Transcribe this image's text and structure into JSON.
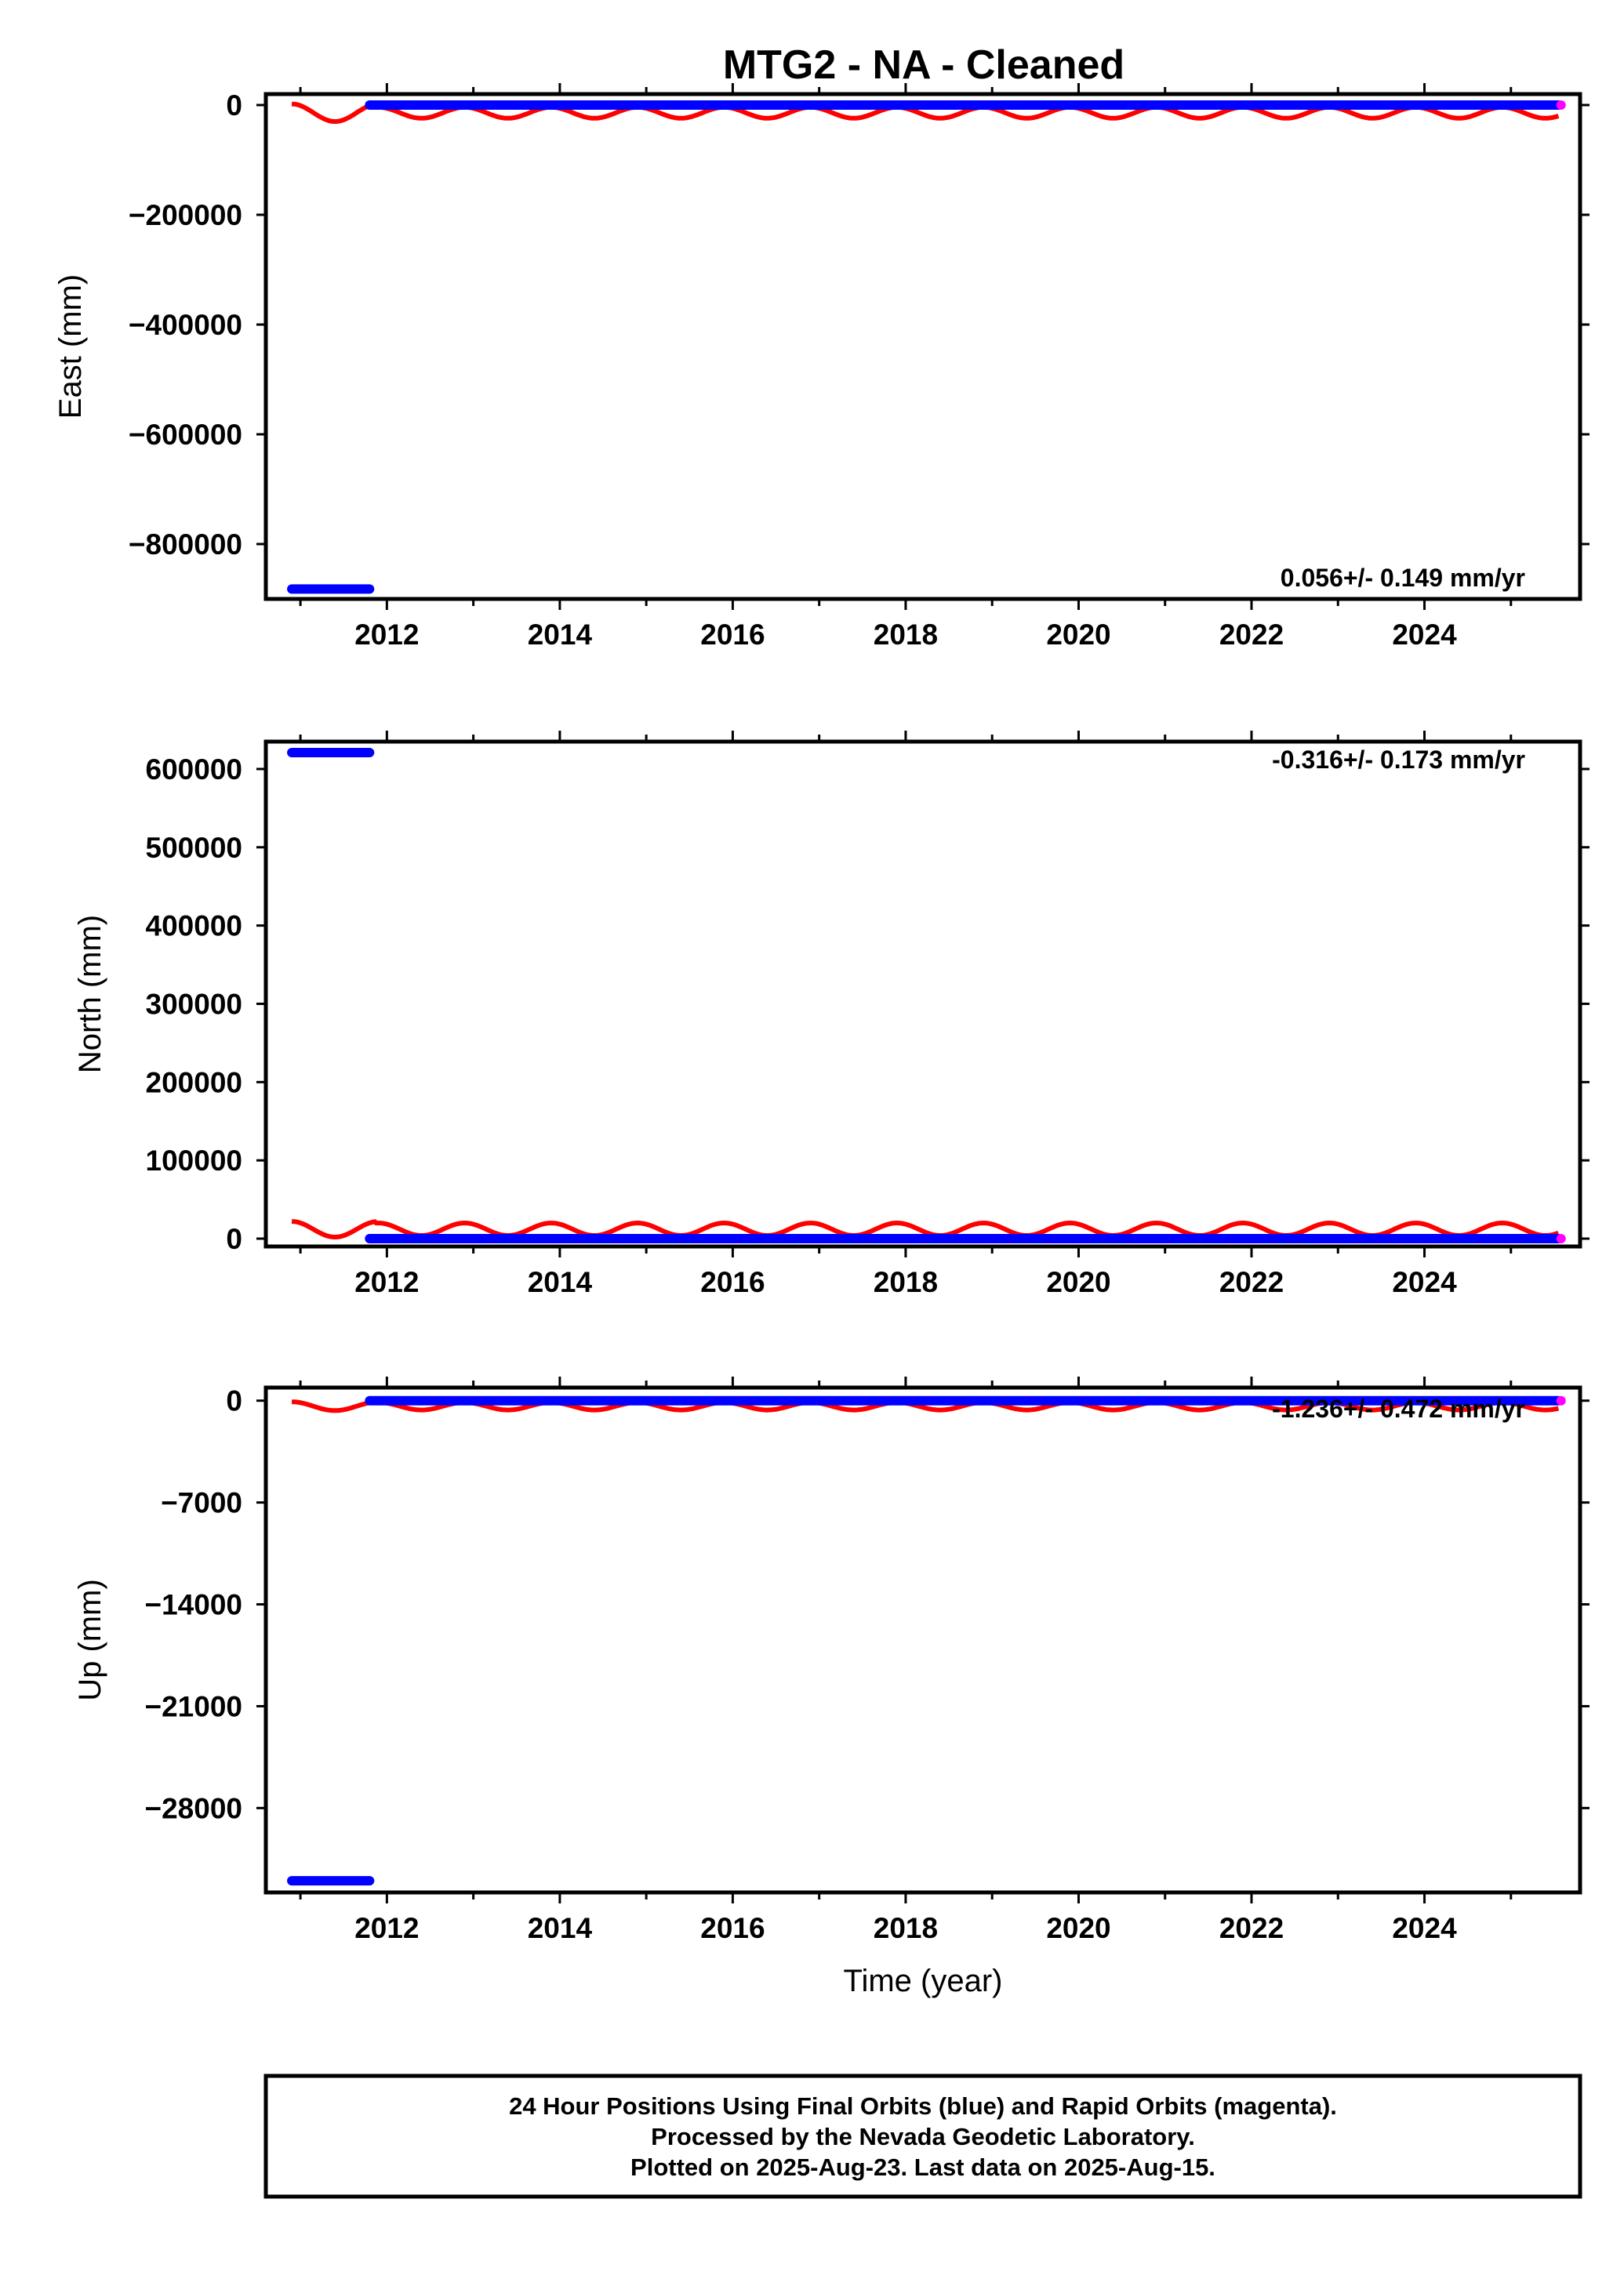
{
  "title": "MTG2  - NA - Cleaned",
  "xlabel": "Time (year)",
  "colors": {
    "final": "#0000ff",
    "rapid": "#ff00ff",
    "model": "#ff0000",
    "frame": "#000000"
  },
  "chart_data": [
    {
      "type": "scatter",
      "name": "east",
      "ylabel": "East (mm)",
      "rate_text": "0.056+/- 0.149 mm/yr",
      "xlim": [
        2010.6,
        2025.8
      ],
      "ylim": [
        -900000,
        20000
      ],
      "yticks": [
        0,
        -200000,
        -400000,
        -600000,
        -800000
      ],
      "ytick_labels": [
        "0",
        "−200000",
        "−400000",
        "−600000",
        "−800000"
      ],
      "xticks": [
        2012,
        2014,
        2016,
        2018,
        2020,
        2022,
        2024
      ],
      "offset_segment": {
        "x": [
          2010.9,
          2011.8
        ],
        "y": -882000
      },
      "main_segment": {
        "x": [
          2011.8,
          2025.55
        ],
        "y": 0
      },
      "rapid_points": [
        {
          "x": 2025.58,
          "y": 0
        }
      ],
      "model": {
        "x": [
          2010.9,
          2025.55
        ],
        "baseline": -14000,
        "amplitude": 10000,
        "start_amplitude": 16000,
        "period_years": 1.0
      }
    },
    {
      "type": "scatter",
      "name": "north",
      "ylabel": "North (mm)",
      "rate_text": "-0.316+/- 0.173 mm/yr",
      "xlim": [
        2010.6,
        2025.8
      ],
      "ylim": [
        -10000,
        635000
      ],
      "yticks": [
        600000,
        500000,
        400000,
        300000,
        200000,
        100000,
        0
      ],
      "ytick_labels": [
        "600000",
        "500000",
        "400000",
        "300000",
        "200000",
        "100000",
        "0"
      ],
      "xticks": [
        2012,
        2014,
        2016,
        2018,
        2020,
        2022,
        2024
      ],
      "offset_segment": {
        "x": [
          2010.9,
          2011.8
        ],
        "y": 621000
      },
      "main_segment": {
        "x": [
          2011.8,
          2025.55
        ],
        "y": 0
      },
      "rapid_points": [
        {
          "x": 2025.58,
          "y": 0
        }
      ],
      "model": {
        "x": [
          2010.9,
          2025.55
        ],
        "baseline": 12000,
        "amplitude": 8000,
        "start_amplitude": 10000,
        "period_years": 1.0
      }
    },
    {
      "type": "scatter",
      "name": "up",
      "ylabel": "Up (mm)",
      "rate_text": "-1.236+/- 0.472 mm/yr",
      "xlim": [
        2010.6,
        2025.8
      ],
      "ylim": [
        -33800,
        900
      ],
      "yticks": [
        0,
        -7000,
        -14000,
        -21000,
        -28000
      ],
      "ytick_labels": [
        "0",
        "−7000",
        "−14000",
        "−21000",
        "−28000"
      ],
      "xticks": [
        2012,
        2014,
        2016,
        2018,
        2020,
        2022,
        2024
      ],
      "offset_segment": {
        "x": [
          2010.9,
          2011.8
        ],
        "y": -33000
      },
      "main_segment": {
        "x": [
          2011.8,
          2025.55
        ],
        "y": 0
      },
      "rapid_points": [
        {
          "x": 2025.58,
          "y": 0
        }
      ],
      "model": {
        "x": [
          2010.9,
          2025.55
        ],
        "baseline": -380,
        "amplitude": 260,
        "start_amplitude": 300,
        "period_years": 1.0
      }
    }
  ],
  "footer": {
    "line1": "24 Hour Positions Using Final Orbits (blue) and Rapid Orbits (magenta).",
    "line2": "Processed by the Nevada Geodetic Laboratory.",
    "line3": "Plotted on 2025-Aug-23. Last data on 2025-Aug-15."
  }
}
